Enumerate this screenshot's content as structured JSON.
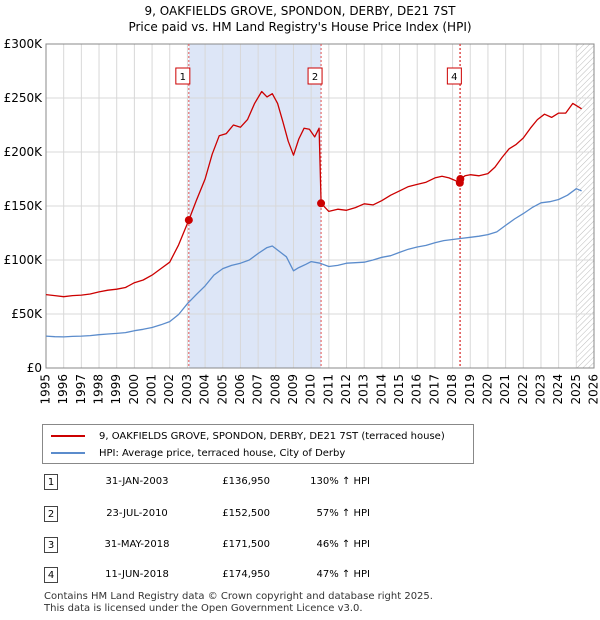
{
  "header": {
    "title_line1": "9, OAKFIELDS GROVE, SPONDON, DERBY, DE21 7ST",
    "title_line2": "Price paid vs. HM Land Registry's House Price Index (HPI)"
  },
  "colors": {
    "property": "#cc0000",
    "hpi": "#5b8ccc",
    "band": "#dde6f7",
    "grid": "#d8d8d8"
  },
  "chart_data": {
    "type": "line",
    "xlim": [
      1995,
      2026
    ],
    "ylim": [
      0,
      300000
    ],
    "yticks": [
      0,
      50000,
      100000,
      150000,
      200000,
      250000,
      300000
    ],
    "ytick_labels": [
      "£0",
      "£50K",
      "£100K",
      "£150K",
      "£200K",
      "£250K",
      "£300K"
    ],
    "xticks": [
      1995,
      1996,
      1997,
      1998,
      1999,
      2000,
      2001,
      2002,
      2003,
      2004,
      2005,
      2006,
      2007,
      2008,
      2009,
      2010,
      2011,
      2012,
      2013,
      2014,
      2015,
      2016,
      2017,
      2018,
      2019,
      2020,
      2021,
      2022,
      2023,
      2024,
      2025,
      2026
    ],
    "shaded_ranges": [
      [
        2003.08,
        2010.56
      ]
    ],
    "future_hatch_from": 2025.0,
    "series": [
      {
        "name": "9, OAKFIELDS GROVE, SPONDON, DERBY, DE21 7ST (terraced house)",
        "color": "#cc0000",
        "points": [
          [
            1995.0,
            68000
          ],
          [
            1995.5,
            67000
          ],
          [
            1996.0,
            66000
          ],
          [
            1996.5,
            67000
          ],
          [
            1997.0,
            67500
          ],
          [
            1997.5,
            68500
          ],
          [
            1998.0,
            70500
          ],
          [
            1998.5,
            72000
          ],
          [
            1999.0,
            73000
          ],
          [
            1999.5,
            74500
          ],
          [
            2000.0,
            79000
          ],
          [
            2000.5,
            81500
          ],
          [
            2001.0,
            86000
          ],
          [
            2001.5,
            92000
          ],
          [
            2002.0,
            98000
          ],
          [
            2002.5,
            114000
          ],
          [
            2003.08,
            136950
          ],
          [
            2003.5,
            155000
          ],
          [
            2004.0,
            175000
          ],
          [
            2004.4,
            198000
          ],
          [
            2004.8,
            215000
          ],
          [
            2005.2,
            217000
          ],
          [
            2005.6,
            225000
          ],
          [
            2006.0,
            223000
          ],
          [
            2006.4,
            230000
          ],
          [
            2006.8,
            245000
          ],
          [
            2007.2,
            256000
          ],
          [
            2007.5,
            251000
          ],
          [
            2007.8,
            254000
          ],
          [
            2008.1,
            245000
          ],
          [
            2008.4,
            228000
          ],
          [
            2008.7,
            210000
          ],
          [
            2009.0,
            197000
          ],
          [
            2009.3,
            212000
          ],
          [
            2009.6,
            222000
          ],
          [
            2009.9,
            221000
          ],
          [
            2010.2,
            214000
          ],
          [
            2010.45,
            222000
          ],
          [
            2010.56,
            152500
          ],
          [
            2011.0,
            145000
          ],
          [
            2011.5,
            147000
          ],
          [
            2012.0,
            146000
          ],
          [
            2012.5,
            148500
          ],
          [
            2013.0,
            152000
          ],
          [
            2013.5,
            151000
          ],
          [
            2014.0,
            155000
          ],
          [
            2014.5,
            160000
          ],
          [
            2015.0,
            164000
          ],
          [
            2015.5,
            168000
          ],
          [
            2016.0,
            170000
          ],
          [
            2016.5,
            172000
          ],
          [
            2017.0,
            176000
          ],
          [
            2017.4,
            177500
          ],
          [
            2017.8,
            176000
          ],
          [
            2018.1,
            174000
          ],
          [
            2018.41,
            171500
          ],
          [
            2018.44,
            174950
          ],
          [
            2018.7,
            178000
          ],
          [
            2019.0,
            179000
          ],
          [
            2019.5,
            178000
          ],
          [
            2020.0,
            180000
          ],
          [
            2020.4,
            186000
          ],
          [
            2020.8,
            195000
          ],
          [
            2021.2,
            203000
          ],
          [
            2021.6,
            207000
          ],
          [
            2022.0,
            213000
          ],
          [
            2022.4,
            222000
          ],
          [
            2022.8,
            230000
          ],
          [
            2023.2,
            235000
          ],
          [
            2023.6,
            232000
          ],
          [
            2024.0,
            236000
          ],
          [
            2024.4,
            236000
          ],
          [
            2024.8,
            245000
          ],
          [
            2025.0,
            243000
          ],
          [
            2025.3,
            240000
          ]
        ]
      },
      {
        "name": "HPI: Average price, terraced house, City of Derby",
        "color": "#5b8ccc",
        "points": [
          [
            1995.0,
            29500
          ],
          [
            1995.5,
            29000
          ],
          [
            1996.0,
            28800
          ],
          [
            1996.5,
            29300
          ],
          [
            1997.0,
            29500
          ],
          [
            1997.5,
            30000
          ],
          [
            1998.0,
            30800
          ],
          [
            1998.5,
            31500
          ],
          [
            1999.0,
            32000
          ],
          [
            1999.5,
            32800
          ],
          [
            2000.0,
            34500
          ],
          [
            2000.5,
            35800
          ],
          [
            2001.0,
            37500
          ],
          [
            2001.5,
            40000
          ],
          [
            2002.0,
            43000
          ],
          [
            2002.5,
            49500
          ],
          [
            2003.0,
            59500
          ],
          [
            2003.5,
            68000
          ],
          [
            2004.0,
            76000
          ],
          [
            2004.5,
            86000
          ],
          [
            2005.0,
            92000
          ],
          [
            2005.5,
            95000
          ],
          [
            2006.0,
            97000
          ],
          [
            2006.5,
            100000
          ],
          [
            2007.0,
            106000
          ],
          [
            2007.5,
            111500
          ],
          [
            2007.8,
            113000
          ],
          [
            2008.2,
            108000
          ],
          [
            2008.6,
            103000
          ],
          [
            2009.0,
            90000
          ],
          [
            2009.3,
            93000
          ],
          [
            2009.7,
            96000
          ],
          [
            2010.0,
            98500
          ],
          [
            2010.5,
            97000
          ],
          [
            2011.0,
            94000
          ],
          [
            2011.5,
            95000
          ],
          [
            2012.0,
            97000
          ],
          [
            2012.5,
            97500
          ],
          [
            2013.0,
            98000
          ],
          [
            2013.5,
            100000
          ],
          [
            2014.0,
            102500
          ],
          [
            2014.5,
            104000
          ],
          [
            2015.0,
            107000
          ],
          [
            2015.5,
            110000
          ],
          [
            2016.0,
            112000
          ],
          [
            2016.5,
            113500
          ],
          [
            2017.0,
            116000
          ],
          [
            2017.5,
            118000
          ],
          [
            2018.0,
            119000
          ],
          [
            2018.5,
            120000
          ],
          [
            2019.0,
            121000
          ],
          [
            2019.5,
            122000
          ],
          [
            2020.0,
            123500
          ],
          [
            2020.5,
            126000
          ],
          [
            2021.0,
            132000
          ],
          [
            2021.5,
            138000
          ],
          [
            2022.0,
            143000
          ],
          [
            2022.5,
            148500
          ],
          [
            2023.0,
            153000
          ],
          [
            2023.5,
            154000
          ],
          [
            2024.0,
            156000
          ],
          [
            2024.5,
            160000
          ],
          [
            2025.0,
            166000
          ],
          [
            2025.3,
            164000
          ]
        ]
      }
    ],
    "transactions": [
      {
        "id": "1",
        "date": "31-JAN-2003",
        "x": 2003.08,
        "price": 136950,
        "price_label": "£136,950",
        "hpi_change": "130% ↑ HPI",
        "show_marker": true
      },
      {
        "id": "2",
        "date": "23-JUL-2010",
        "x": 2010.56,
        "price": 152500,
        "price_label": "£152,500",
        "hpi_change": "57% ↑ HPI",
        "show_marker": true
      },
      {
        "id": "3",
        "date": "31-MAY-2018",
        "x": 2018.41,
        "price": 171500,
        "price_label": "£171,500",
        "hpi_change": "46% ↑ HPI",
        "show_marker": false
      },
      {
        "id": "4",
        "date": "11-JUN-2018",
        "x": 2018.44,
        "price": 174950,
        "price_label": "£174,950",
        "hpi_change": "47% ↑ HPI",
        "show_marker": true
      }
    ]
  },
  "legend": {
    "property_label": "9, OAKFIELDS GROVE, SPONDON, DERBY, DE21 7ST (terraced house)",
    "hpi_label": "HPI: Average price, terraced house, City of Derby"
  },
  "footer": {
    "line1": "Contains HM Land Registry data © Crown copyright and database right 2025.",
    "line2": "This data is licensed under the Open Government Licence v3.0."
  }
}
